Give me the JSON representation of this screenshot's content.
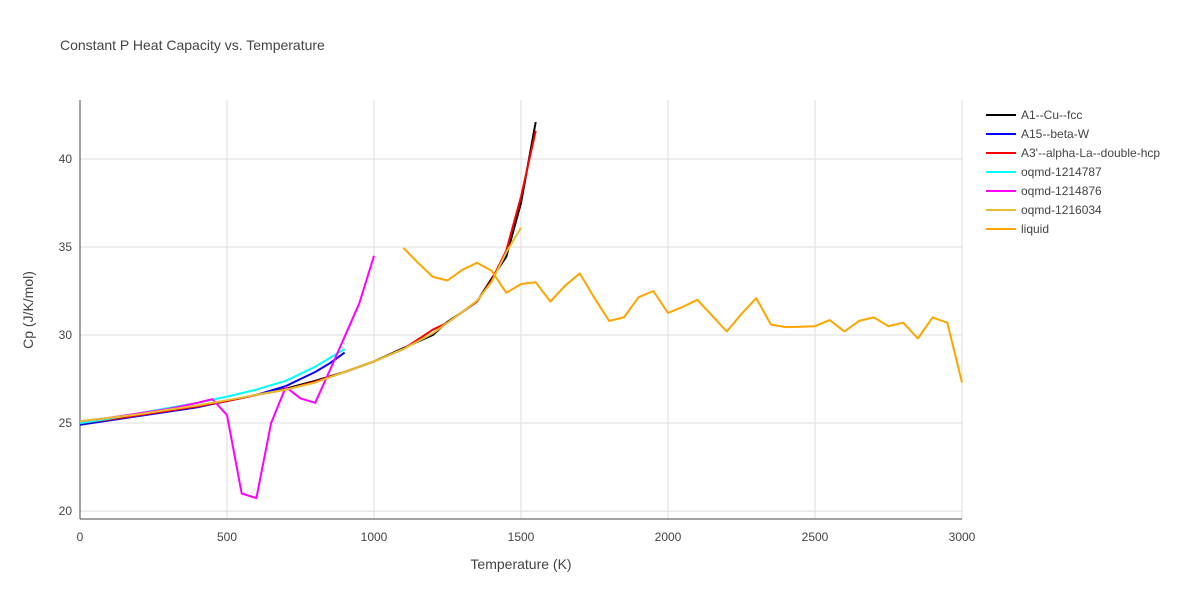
{
  "chart_data": {
    "type": "line",
    "title": "Constant P Heat Capacity vs. Temperature",
    "xlabel": "Temperature (K)",
    "ylabel": "Cp (J/K/mol)",
    "xlim": [
      0,
      3000
    ],
    "ylim": [
      19.55,
      43.35
    ],
    "xticks": [
      0,
      500,
      1000,
      1500,
      2000,
      2500,
      3000
    ],
    "yticks": [
      20,
      25,
      30,
      35,
      40
    ],
    "grid": true,
    "legend": "top-right",
    "series": [
      {
        "name": "A1--Cu--fcc",
        "color": "#000000",
        "x": [
          0,
          100,
          200,
          300,
          400,
          500,
          600,
          700,
          800,
          900,
          1000,
          1100,
          1200,
          1250,
          1300,
          1350,
          1400,
          1450,
          1500,
          1550
        ],
        "y": [
          25.0,
          25.2,
          25.45,
          25.7,
          25.95,
          26.25,
          26.6,
          26.95,
          27.4,
          27.9,
          28.5,
          29.26,
          30.0,
          30.75,
          31.3,
          31.9,
          33.2,
          34.45,
          37.5,
          42.1
        ]
      },
      {
        "name": "A15--beta-W",
        "color": "#0000ff",
        "x": [
          0,
          100,
          200,
          300,
          400,
          500,
          600,
          700,
          750,
          800,
          850,
          900
        ],
        "y": [
          24.9,
          25.15,
          25.4,
          25.65,
          25.9,
          26.25,
          26.6,
          27.1,
          27.5,
          27.9,
          28.4,
          29.0
        ]
      },
      {
        "name": "A3'--alpha-La--double-hcp",
        "color": "#ff0000",
        "x": [
          0,
          100,
          200,
          300,
          400,
          500,
          600,
          700,
          800,
          900,
          1000,
          1100,
          1200,
          1250,
          1300,
          1350,
          1400,
          1450,
          1500,
          1550
        ],
        "y": [
          25.0,
          25.2,
          25.45,
          25.7,
          25.95,
          26.25,
          26.6,
          26.9,
          27.35,
          27.9,
          28.5,
          29.2,
          30.3,
          30.7,
          31.3,
          31.9,
          33.1,
          34.8,
          37.85,
          41.6
        ]
      },
      {
        "name": "oqmd-1214787",
        "color": "#00ffff",
        "x": [
          0,
          100,
          200,
          300,
          400,
          500,
          600,
          700,
          750,
          800,
          850,
          900
        ],
        "y": [
          25.0,
          25.25,
          25.55,
          25.85,
          26.15,
          26.5,
          26.9,
          27.4,
          27.8,
          28.2,
          28.7,
          29.2
        ]
      },
      {
        "name": "oqmd-1214876",
        "color": "#ff00ff",
        "x": [
          0,
          100,
          200,
          300,
          400,
          450,
          500,
          550,
          600,
          650,
          700,
          750,
          800,
          850,
          900,
          950,
          1000
        ],
        "y": [
          25.1,
          25.3,
          25.55,
          25.8,
          26.15,
          26.36,
          25.45,
          21.0,
          20.74,
          25.0,
          27.05,
          26.4,
          26.15,
          28.0,
          29.9,
          31.8,
          34.5
        ]
      },
      {
        "name": "oqmd-1216034",
        "color": "#e8be30",
        "x": [
          0,
          100,
          200,
          300,
          400,
          500,
          600,
          700,
          800,
          900,
          1000,
          1100,
          1200,
          1250,
          1300,
          1350,
          1400,
          1450,
          1500
        ],
        "y": [
          25.1,
          25.3,
          25.5,
          25.75,
          26.0,
          26.3,
          26.6,
          26.9,
          27.3,
          27.9,
          28.5,
          29.2,
          30.1,
          30.7,
          31.3,
          31.95,
          33.0,
          34.7,
          36.1
        ]
      },
      {
        "name": "liquid",
        "color": "#ffa500",
        "x": [
          1100,
          1150,
          1200,
          1250,
          1300,
          1350,
          1400,
          1450,
          1500,
          1550,
          1600,
          1650,
          1700,
          1750,
          1800,
          1850,
          1900,
          1950,
          2000,
          2050,
          2100,
          2150,
          2200,
          2250,
          2300,
          2350,
          2400,
          2450,
          2500,
          2550,
          2600,
          2650,
          2700,
          2750,
          2800,
          2850,
          2900,
          2950,
          3000
        ],
        "y": [
          34.95,
          34.1,
          33.3,
          33.1,
          33.7,
          34.1,
          33.65,
          32.4,
          32.9,
          33.0,
          31.9,
          32.8,
          33.5,
          32.1,
          30.8,
          31.0,
          32.15,
          32.5,
          31.25,
          31.6,
          32.0,
          31.1,
          30.2,
          31.2,
          32.1,
          30.6,
          30.45,
          30.47,
          30.5,
          30.85,
          30.2,
          30.8,
          31.0,
          30.5,
          30.7,
          29.8,
          31.0,
          30.7,
          27.3
        ]
      }
    ]
  }
}
